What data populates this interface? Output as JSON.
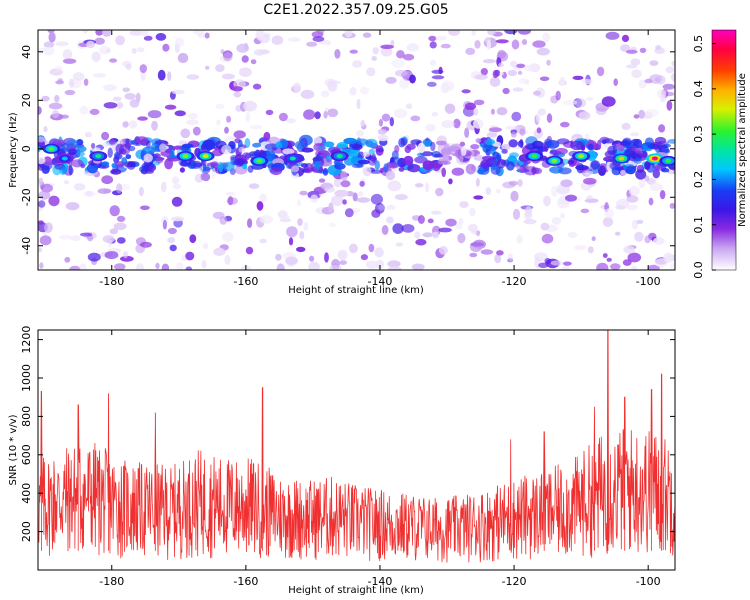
{
  "figure_title": "C2E1.2022.357.09.25.G05",
  "chart_data": [
    {
      "type": "heatmap",
      "xlabel": "Height of straight line (km)",
      "ylabel": "Frequency (Hz)",
      "xlim": [
        -191,
        -96
      ],
      "ylim": [
        -50,
        49
      ],
      "xticks": [
        -180,
        -160,
        -140,
        -120,
        -100
      ],
      "yticks": [
        -40,
        -20,
        0,
        20,
        40
      ],
      "colorbar": {
        "label": "Normalized spectral amplitude",
        "range": [
          0.0,
          0.53
        ],
        "ticks": [
          0.0,
          0.1,
          0.2,
          0.3,
          0.4,
          0.5
        ],
        "colormap": [
          "#ffffff",
          "#c9a6f2",
          "#8a2be2",
          "#3b17e6",
          "#1a3cf5",
          "#00c8ff",
          "#00e6a0",
          "#2ef22e",
          "#d8f000",
          "#ffb000",
          "#ff4000",
          "#ff0040",
          "#ff00c0"
        ]
      },
      "band": {
        "center_hz": -3,
        "half_width_hz": 6,
        "gap_km": [
          -131,
          -125
        ]
      },
      "hotspots": [
        {
          "x": -189,
          "y": 0,
          "v": 0.32
        },
        {
          "x": -187,
          "y": -4,
          "v": 0.22
        },
        {
          "x": -182,
          "y": -3,
          "v": 0.28
        },
        {
          "x": -169,
          "y": -3,
          "v": 0.33
        },
        {
          "x": -166,
          "y": -3,
          "v": 0.36
        },
        {
          "x": -158,
          "y": -5,
          "v": 0.32
        },
        {
          "x": -153,
          "y": -4,
          "v": 0.26
        },
        {
          "x": -146,
          "y": -3,
          "v": 0.28
        },
        {
          "x": -117,
          "y": -3,
          "v": 0.31
        },
        {
          "x": -114,
          "y": -5,
          "v": 0.33
        },
        {
          "x": -110,
          "y": -3,
          "v": 0.34
        },
        {
          "x": -104,
          "y": -4,
          "v": 0.38
        },
        {
          "x": -99,
          "y": -4,
          "v": 0.52
        },
        {
          "x": -97,
          "y": -5,
          "v": 0.3
        }
      ]
    },
    {
      "type": "line",
      "xlabel": "Height of straight line (km)",
      "ylabel": "SNR (10 * v/v)",
      "xlim": [
        -191,
        -96
      ],
      "ylim": [
        0,
        1250
      ],
      "xticks": [
        -180,
        -160,
        -140,
        -120,
        -100
      ],
      "yticks": [
        200,
        400,
        600,
        800,
        1000,
        1200
      ],
      "color": "#f03030",
      "series": [
        {
          "envelope": [
            {
              "x": -191,
              "y": 560
            },
            {
              "x": -187,
              "y": 620
            },
            {
              "x": -183,
              "y": 650
            },
            {
              "x": -179,
              "y": 560
            },
            {
              "x": -175,
              "y": 530
            },
            {
              "x": -171,
              "y": 520
            },
            {
              "x": -167,
              "y": 600
            },
            {
              "x": -163,
              "y": 560
            },
            {
              "x": -159,
              "y": 560
            },
            {
              "x": -155,
              "y": 480
            },
            {
              "x": -151,
              "y": 450
            },
            {
              "x": -147,
              "y": 470
            },
            {
              "x": -143,
              "y": 420
            },
            {
              "x": -139,
              "y": 400
            },
            {
              "x": -135,
              "y": 380
            },
            {
              "x": -131,
              "y": 360
            },
            {
              "x": -127,
              "y": 380
            },
            {
              "x": -123,
              "y": 420
            },
            {
              "x": -119,
              "y": 470
            },
            {
              "x": -115,
              "y": 500
            },
            {
              "x": -111,
              "y": 560
            },
            {
              "x": -107,
              "y": 680
            },
            {
              "x": -103,
              "y": 720
            },
            {
              "x": -99,
              "y": 700
            },
            {
              "x": -96,
              "y": 640
            }
          ],
          "peaks": [
            {
              "x": -190.5,
              "y": 930
            },
            {
              "x": -185,
              "y": 860
            },
            {
              "x": -180.5,
              "y": 920
            },
            {
              "x": -173.5,
              "y": 820
            },
            {
              "x": -157.5,
              "y": 950
            },
            {
              "x": -120.5,
              "y": 680
            },
            {
              "x": -115.5,
              "y": 720
            },
            {
              "x": -108,
              "y": 850
            },
            {
              "x": -106,
              "y": 1250
            },
            {
              "x": -103.5,
              "y": 900
            },
            {
              "x": -99.5,
              "y": 940
            },
            {
              "x": -98,
              "y": 1020
            }
          ]
        }
      ]
    }
  ]
}
